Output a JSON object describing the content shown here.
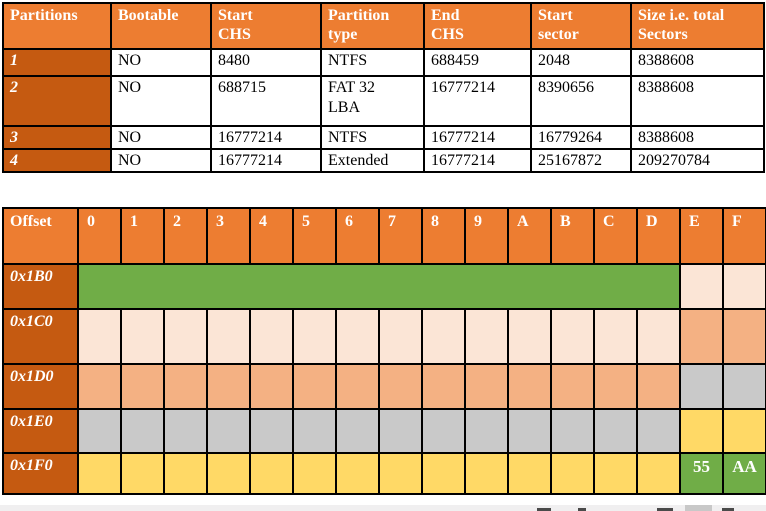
{
  "partition_table": {
    "headers": [
      "Partitions",
      "Bootable",
      "Start\nCHS",
      "Partition\ntype",
      "End\nCHS",
      "Start\nsector",
      "Size i.e. total\nSectors"
    ],
    "rows": [
      [
        "1",
        "NO",
        "8480",
        "NTFS",
        "688459",
        "2048",
        "8388608"
      ],
      [
        "2",
        "NO",
        "688715",
        "FAT 32\nLBA",
        "16777214",
        "8390656",
        "8388608"
      ],
      [
        "3",
        "NO",
        "16777214",
        "NTFS",
        "16777214",
        "16779264",
        "8388608"
      ],
      [
        "4",
        "NO",
        "16777214",
        "Extended",
        "16777214",
        "25167872",
        "209270784"
      ]
    ]
  },
  "hex_table": {
    "offset_label": "Offset",
    "column_headers": [
      "0",
      "1",
      "2",
      "3",
      "4",
      "5",
      "6",
      "7",
      "8",
      "9",
      "A",
      "B",
      "C",
      "D",
      "E",
      "F"
    ],
    "rows": [
      {
        "offset": "0x1B0",
        "body": {
          "color_name": "green",
          "merged": true
        },
        "tail": {
          "color_name": "peach",
          "values": [
            "",
            ""
          ]
        }
      },
      {
        "offset": "0x1C0",
        "body": {
          "color_name": "peach",
          "merged": false
        },
        "tail": {
          "color_name": "salmon",
          "values": [
            "",
            ""
          ]
        }
      },
      {
        "offset": "0x1D0",
        "body": {
          "color_name": "salmon",
          "merged": false
        },
        "tail": {
          "color_name": "gray",
          "values": [
            "",
            ""
          ]
        }
      },
      {
        "offset": "0x1E0",
        "body": {
          "color_name": "gray",
          "merged": false
        },
        "tail": {
          "color_name": "yellow",
          "values": [
            "",
            ""
          ]
        }
      },
      {
        "offset": "0x1F0",
        "body": {
          "color_name": "yellow",
          "merged": false
        },
        "tail": {
          "color_name": "green",
          "values": [
            "55",
            "AA"
          ]
        }
      }
    ]
  },
  "colors": {
    "header_orange": "#ED7D31",
    "row_label_orange": "#C55A11",
    "green": "#70AD47",
    "peach": "#FBE5D6",
    "salmon": "#F4B183",
    "gray": "#C9C9C9",
    "yellow": "#FFD966",
    "table_border": "#000000",
    "header_text": "#FFFFFF"
  }
}
